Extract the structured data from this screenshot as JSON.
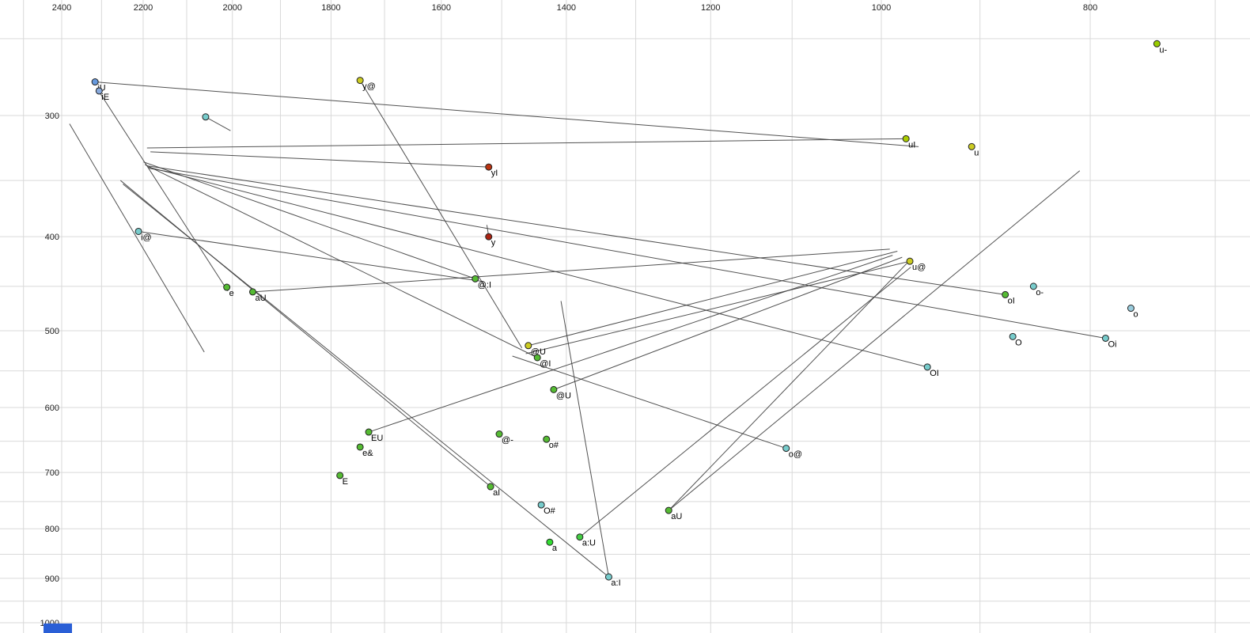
{
  "chart_data": {
    "type": "scatter",
    "description": "Vowel formant plot (F2 horizontal reversed log axis, F1 vertical reversed log axis) with diphthong trajectory lines",
    "x_axis": {
      "ticks": [
        2400,
        2200,
        2000,
        1800,
        1600,
        1400,
        1200,
        1000,
        800
      ],
      "scale": "log",
      "reversed": true
    },
    "y_axis": {
      "ticks": [
        300,
        400,
        500,
        600,
        700,
        800,
        900,
        1000
      ],
      "scale": "log",
      "reversed": true
    },
    "grid": {
      "x_step": 100,
      "x_min": 700,
      "x_max": 2500,
      "y_step": 50,
      "y_min": 250,
      "y_max": 1000,
      "color": "#d9d9d9"
    },
    "line_color": "#3f3f3f",
    "label_color": "#000000",
    "tick_color": "#222222",
    "point_stroke": "#222222",
    "point_radius": 4,
    "points": [
      {
        "label": "u-",
        "f2": 745,
        "f1": 253,
        "color": "#99cc00"
      },
      {
        "label": "iU",
        "f2": 2316,
        "f1": 277,
        "color": "#6699dd"
      },
      {
        "label": "iE",
        "f2": 2306,
        "f1": 283,
        "color": "#88aadd"
      },
      {
        "label": "",
        "f2": 2058,
        "f1": 301,
        "color": "#77cccc"
      },
      {
        "label": "y@",
        "f2": 1745,
        "f1": 276,
        "color": "#cccc22"
      },
      {
        "label": "uI",
        "f2": 974,
        "f1": 317,
        "color": "#aacc00"
      },
      {
        "label": "u",
        "f2": 908,
        "f1": 323,
        "color": "#cccc22"
      },
      {
        "label": "yI",
        "f2": 1521,
        "f1": 339,
        "color": "#bb3311"
      },
      {
        "label": "y",
        "f2": 1521,
        "f1": 400,
        "color": "#aa2211"
      },
      {
        "label": "i@",
        "f2": 2211,
        "f1": 395,
        "color": "#77cccc"
      },
      {
        "label": "@:I",
        "f2": 1543,
        "f1": 442,
        "color": "#55bb33"
      },
      {
        "label": "e",
        "f2": 2012,
        "f1": 451,
        "color": "#55bb33"
      },
      {
        "label": "aU",
        "f2": 1957,
        "f1": 456,
        "color": "#55bb33"
      },
      {
        "label": "u@",
        "f2": 970,
        "f1": 424,
        "color": "#cccc22"
      },
      {
        "label": "o-",
        "f2": 850,
        "f1": 450,
        "color": "#77cccc"
      },
      {
        "label": "oI",
        "f2": 876,
        "f1": 459,
        "color": "#55bb33"
      },
      {
        "label": "o",
        "f2": 766,
        "f1": 474,
        "color": "#99ccdd"
      },
      {
        "label": "O",
        "f2": 869,
        "f1": 507,
        "color": "#77cccc"
      },
      {
        "label": "Oi",
        "f2": 787,
        "f1": 509,
        "color": "#77cccc"
      },
      {
        "label": "@U",
        "f2": 1458,
        "f1": 518,
        "color": "#cccc22"
      },
      {
        "label": "@I",
        "f2": 1444,
        "f1": 533,
        "color": "#55bb33"
      },
      {
        "label": "OI",
        "f2": 952,
        "f1": 545,
        "color": "#77cccc"
      },
      {
        "label": "@U",
        "f2": 1419,
        "f1": 575,
        "color": "#55bb33"
      },
      {
        "label": "EU",
        "f2": 1729,
        "f1": 636,
        "color": "#55bb33"
      },
      {
        "label": "@-",
        "f2": 1504,
        "f1": 639,
        "color": "#55bb33"
      },
      {
        "label": "o#",
        "f2": 1430,
        "f1": 647,
        "color": "#55bb33"
      },
      {
        "label": "e&",
        "f2": 1745,
        "f1": 659,
        "color": "#55bb33"
      },
      {
        "label": "o@",
        "f2": 1107,
        "f1": 661,
        "color": "#77cccc"
      },
      {
        "label": "E",
        "f2": 1783,
        "f1": 705,
        "color": "#55bb33"
      },
      {
        "label": "aI",
        "f2": 1518,
        "f1": 724,
        "color": "#55bb33"
      },
      {
        "label": "O#",
        "f2": 1438,
        "f1": 756,
        "color": "#77cccc"
      },
      {
        "label": "aU",
        "f2": 1255,
        "f1": 766,
        "color": "#55bb33"
      },
      {
        "label": "a:U",
        "f2": 1380,
        "f1": 816,
        "color": "#44cc44"
      },
      {
        "label": "a",
        "f2": 1425,
        "f1": 826,
        "color": "#33dd33"
      },
      {
        "label": "a:I",
        "f2": 1338,
        "f1": 897,
        "color": "#77cccc"
      }
    ],
    "segments": [
      {
        "from": [
          2316,
          277
        ],
        "to": [
          961,
          323
        ]
      },
      {
        "from": [
          974,
          317
        ],
        "to": [
          2191,
          324
        ]
      },
      {
        "from": [
          1521,
          339
        ],
        "to": [
          2183,
          327
        ]
      },
      {
        "from": [
          1543,
          442
        ],
        "to": [
          2199,
          335
        ]
      },
      {
        "from": [
          1444,
          533
        ],
        "to": [
          2196,
          337
        ]
      },
      {
        "from": [
          876,
          459
        ],
        "to": [
          2192,
          338
        ]
      },
      {
        "from": [
          787,
          509
        ],
        "to": [
          2187,
          340
        ]
      },
      {
        "from": [
          952,
          545
        ],
        "to": [
          2189,
          339
        ]
      },
      {
        "from": [
          1518,
          724
        ],
        "to": [
          2254,
          350
        ]
      },
      {
        "from": [
          1338,
          897
        ],
        "to": [
          2248,
          353
        ]
      },
      {
        "from": [
          2211,
          395
        ],
        "to": [
          1529,
          445
        ]
      },
      {
        "from": [
          1745,
          276
        ],
        "to": [
          1468,
          521
        ]
      },
      {
        "from": [
          970,
          424
        ],
        "to": [
          1462,
          528
        ]
      },
      {
        "from": [
          1107,
          661
        ],
        "to": [
          1483,
          531
        ]
      },
      {
        "from": [
          1729,
          636
        ],
        "to": [
          988,
          418
        ]
      },
      {
        "from": [
          1458,
          518
        ],
        "to": [
          983,
          414
        ]
      },
      {
        "from": [
          1419,
          575
        ],
        "to": [
          978,
          420
        ]
      },
      {
        "from": [
          1957,
          456
        ],
        "to": [
          991,
          412
        ]
      },
      {
        "from": [
          1255,
          766
        ],
        "to": [
          972,
          425
        ]
      },
      {
        "from": [
          1380,
          816
        ],
        "to": [
          969,
          430
        ]
      },
      {
        "from": [
          1408,
          466
        ],
        "to": [
          1338,
          897
        ]
      },
      {
        "from": [
          1524,
          389
        ],
        "to": [
          1521,
          400
        ]
      },
      {
        "from": [
          2380,
          306
        ],
        "to": [
          2061,
          526
        ]
      },
      {
        "from": [
          1255,
          766
        ],
        "to": [
          809,
          342
        ]
      },
      {
        "from": [
          2058,
          301
        ],
        "to": [
          2004,
          311
        ]
      },
      {
        "from": [
          2312,
          281
        ],
        "to": [
          2010,
          455
        ]
      }
    ]
  },
  "fragments": {
    "taskbar_color": "#2a5fd6"
  }
}
